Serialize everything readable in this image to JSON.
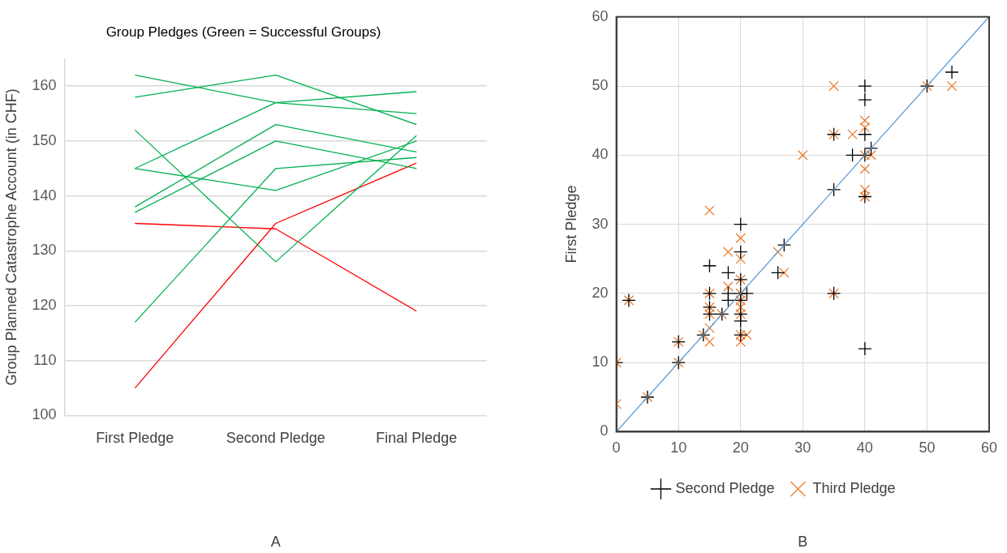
{
  "chart_data": [
    {
      "type": "line",
      "title": "Group Pledges (Green = Successful Groups)",
      "ylabel": "Group Planned Catastrophe Account (in CHF)",
      "categories": [
        "First Pledge",
        "Second Pledge",
        "Final Pledge"
      ],
      "ylim": [
        100,
        165
      ],
      "yticks": [
        100,
        110,
        120,
        130,
        140,
        150,
        160
      ],
      "grid": "y",
      "legend": false,
      "annotations": [
        "A"
      ],
      "series": [
        {
          "color": "#00b050",
          "values": [
            162,
            157,
            155
          ]
        },
        {
          "color": "#00b050",
          "values": [
            158,
            162,
            153
          ]
        },
        {
          "color": "#00b050",
          "values": [
            145,
            157,
            159
          ]
        },
        {
          "color": "#00b050",
          "values": [
            152,
            128,
            151
          ]
        },
        {
          "color": "#00b050",
          "values": [
            145,
            141,
            150
          ]
        },
        {
          "color": "#00b050",
          "values": [
            138,
            153,
            148
          ]
        },
        {
          "color": "#00b050",
          "values": [
            137,
            150,
            145
          ]
        },
        {
          "color": "#00b050",
          "values": [
            117,
            145,
            147
          ]
        },
        {
          "color": "#ff0000",
          "values": [
            135,
            134,
            119
          ]
        },
        {
          "color": "#ff0000",
          "values": [
            105,
            135,
            146
          ]
        }
      ]
    },
    {
      "type": "scatter",
      "ylabel": "First Pledge",
      "xlim": [
        0,
        60
      ],
      "xticks": [
        0,
        10,
        20,
        30,
        40,
        50,
        60
      ],
      "ylim": [
        0,
        60
      ],
      "yticks": [
        0,
        10,
        20,
        30,
        40,
        50,
        60
      ],
      "grid": true,
      "legend": "bottom",
      "annotations": [
        "B"
      ],
      "series": [
        {
          "type": "line",
          "color": "#5b9bd5",
          "x": [
            0,
            60
          ],
          "values": [
            0,
            60
          ]
        },
        {
          "name": "Second Pledge",
          "color": "#000000",
          "marker": "cross",
          "x": [
            0,
            2,
            5,
            10,
            10,
            14,
            15,
            15,
            15,
            15,
            17,
            18,
            18,
            18,
            20,
            20,
            20,
            20,
            20,
            20,
            20,
            20,
            21,
            26,
            27,
            35,
            35,
            35,
            38,
            40,
            40,
            40,
            40,
            40,
            40,
            41,
            50,
            54
          ],
          "values": [
            10,
            19,
            5,
            13,
            10,
            14,
            24,
            20,
            18,
            17,
            17,
            23,
            20,
            19,
            30,
            26,
            22,
            20,
            19,
            17,
            16,
            14,
            20,
            23,
            27,
            35,
            43,
            20,
            40,
            50,
            48,
            43,
            40,
            34,
            12,
            41,
            50,
            52
          ]
        },
        {
          "name": "Third Pledge",
          "color": "#ed7d31",
          "marker": "x",
          "x": [
            0,
            0,
            2,
            5,
            10,
            10,
            14,
            15,
            15,
            15,
            15,
            15,
            15,
            17,
            18,
            18,
            20,
            20,
            20,
            20,
            20,
            20,
            20,
            20,
            20,
            21,
            26,
            27,
            30,
            35,
            35,
            35,
            38,
            40,
            40,
            40,
            40,
            40,
            40,
            40,
            41,
            50,
            54
          ],
          "values": [
            10,
            4,
            19,
            5,
            13,
            10,
            14,
            32,
            20,
            18,
            17,
            15,
            13,
            17,
            26,
            21,
            28,
            25,
            22,
            20,
            19,
            18,
            17,
            14,
            13,
            14,
            26,
            23,
            40,
            50,
            43,
            20,
            43,
            45,
            44,
            40,
            38,
            35,
            34,
            34,
            40,
            50,
            50
          ]
        }
      ]
    }
  ]
}
